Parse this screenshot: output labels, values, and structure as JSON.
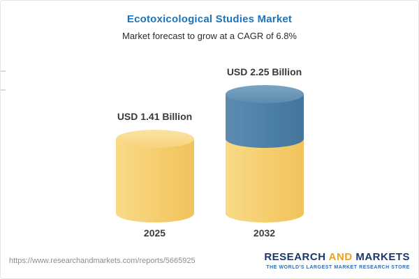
{
  "header": {
    "title": "Ecotoxicological Studies Market",
    "subtitle": "Market forecast to grow at a CAGR of 6.8%"
  },
  "chart_data": {
    "type": "bar",
    "title": "Ecotoxicological Studies Market",
    "subtitle": "Market forecast to grow at a CAGR of 6.8%",
    "categories": [
      "2025",
      "2032"
    ],
    "values": [
      1.41,
      2.25
    ],
    "unit": "USD Billion",
    "value_labels": [
      "USD 1.41 Billion",
      "USD 2.25 Billion"
    ],
    "cagr_percent": 6.8,
    "ylim": [
      0,
      2.5
    ],
    "grid": false,
    "legend": false,
    "stacking_note": "2032 bar rendered as base 1.41 (yellow) plus growth 0.84 (blue)",
    "colors": {
      "base": "#F5CD6D",
      "growth": "#4D80A6"
    }
  },
  "footer": {
    "url": "https://www.researchandmarkets.com/reports/5665925",
    "logo": {
      "research": "RESEARCH",
      "and": "AND",
      "markets": "MARKETS",
      "tagline": "THE WORLD'S LARGEST MARKET RESEARCH STORE"
    }
  }
}
